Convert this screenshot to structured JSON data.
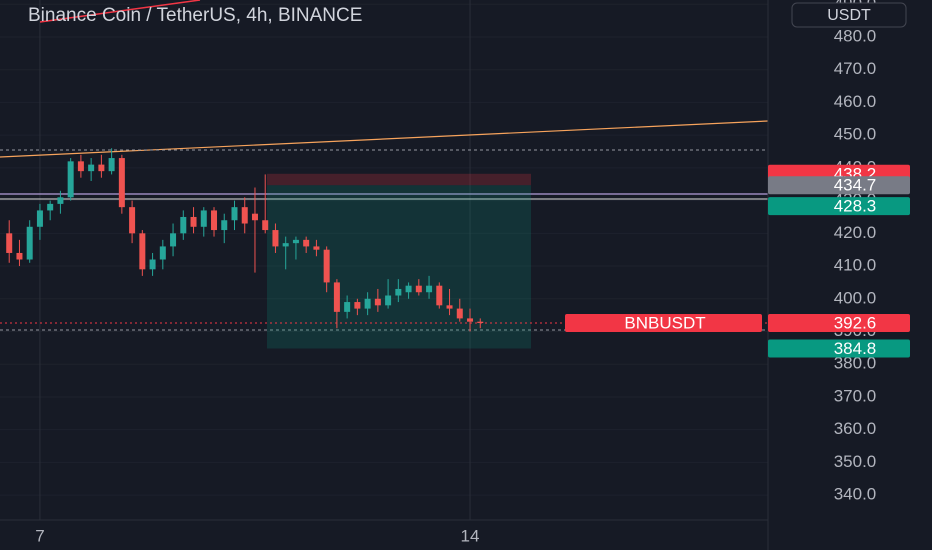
{
  "chart_data": {
    "type": "candlestick",
    "title": "Binance Coin / TetherUS, 4h, BINANCE",
    "currency": "USDT",
    "x": [
      -12,
      -8,
      -4,
      0,
      4,
      8,
      12,
      16,
      20,
      24,
      28,
      32,
      36,
      40,
      44,
      48,
      52,
      56,
      60,
      64,
      68,
      72,
      76,
      80,
      84,
      88,
      92,
      96,
      100,
      104,
      108,
      112,
      116,
      120,
      124,
      128,
      132,
      136,
      140,
      144,
      148,
      152,
      156,
      160,
      164,
      168,
      172
    ],
    "open": [
      420,
      414,
      412,
      422,
      427,
      429,
      431,
      442,
      439,
      441,
      439,
      443,
      428,
      420,
      409,
      412,
      416,
      420,
      425,
      422,
      427,
      421,
      424,
      428,
      426,
      424,
      421,
      416,
      417,
      418,
      416,
      415,
      405,
      396,
      399,
      397,
      400,
      398,
      401,
      402,
      404,
      402,
      404,
      398,
      397,
      394,
      393
    ],
    "high": [
      424,
      418,
      424,
      429,
      430,
      433,
      443,
      444,
      443,
      444,
      446,
      444,
      430,
      421,
      414,
      418,
      423,
      427,
      428,
      428,
      428,
      426,
      430,
      431,
      434,
      438,
      423,
      419,
      419,
      419,
      418,
      416,
      406,
      401,
      400,
      402,
      403,
      406,
      406,
      405,
      406,
      407,
      405,
      403,
      400,
      397,
      394
    ],
    "low": [
      411,
      410,
      411,
      418,
      424,
      426,
      430,
      437,
      436,
      437,
      438,
      426,
      417,
      407,
      407,
      409,
      413,
      418,
      420,
      419,
      419,
      417,
      421,
      420,
      408,
      420,
      414,
      409,
      412,
      414,
      413,
      402,
      391,
      394,
      395,
      395,
      396,
      397,
      399,
      400,
      401,
      400,
      397,
      395,
      393,
      390,
      391
    ],
    "close": [
      414,
      412,
      422,
      427,
      429,
      431,
      442,
      439,
      441,
      439,
      443,
      428,
      420,
      409,
      412,
      416,
      420,
      425,
      422,
      427,
      421,
      424,
      428,
      423,
      424,
      421,
      416,
      417,
      418,
      416,
      415,
      405,
      396,
      399,
      397,
      400,
      398,
      401,
      403,
      404,
      402,
      404,
      398,
      397,
      394,
      393,
      392.6
    ],
    "colors": {
      "up": "#26a69a",
      "down": "#ef5350"
    },
    "xlim": [
      -15.6,
      284.4
    ],
    "xticks": [
      {
        "value": 0,
        "label": "7"
      },
      {
        "value": 168,
        "label": "14"
      }
    ],
    "ylim": [
      332.4,
      491.3
    ],
    "yticks": [
      {
        "value": 340,
        "label": "340.0"
      },
      {
        "value": 350,
        "label": "350.0"
      },
      {
        "value": 360,
        "label": "360.0"
      },
      {
        "value": 370,
        "label": "370.0"
      },
      {
        "value": 380,
        "label": "380.0"
      },
      {
        "value": 390,
        "label": "390.0"
      },
      {
        "value": 400,
        "label": "400.0"
      },
      {
        "value": 410,
        "label": "410.0"
      },
      {
        "value": 420,
        "label": "420.0"
      },
      {
        "value": 430,
        "label": "430.0"
      },
      {
        "value": 440,
        "label": "440.0"
      },
      {
        "value": 450,
        "label": "450.0"
      },
      {
        "value": 460,
        "label": "460.0"
      },
      {
        "value": 470,
        "label": "470.0"
      },
      {
        "value": 480,
        "label": "480.0"
      },
      {
        "value": 490,
        "label": "490.0"
      }
    ],
    "grid": true,
    "position": {
      "stop": 438.2,
      "entry": 434.7,
      "target": 384.8
    },
    "price_labels": [
      {
        "value": 438.2,
        "color": "#f23645"
      },
      {
        "value": 434.7,
        "color": "#787b86"
      },
      {
        "value": 428.3,
        "color": "#089981"
      },
      {
        "value": 384.8,
        "color": "#089981"
      }
    ],
    "last_price": {
      "name": "BNBUSDT",
      "value": 392.6,
      "color": "#f23645"
    }
  }
}
